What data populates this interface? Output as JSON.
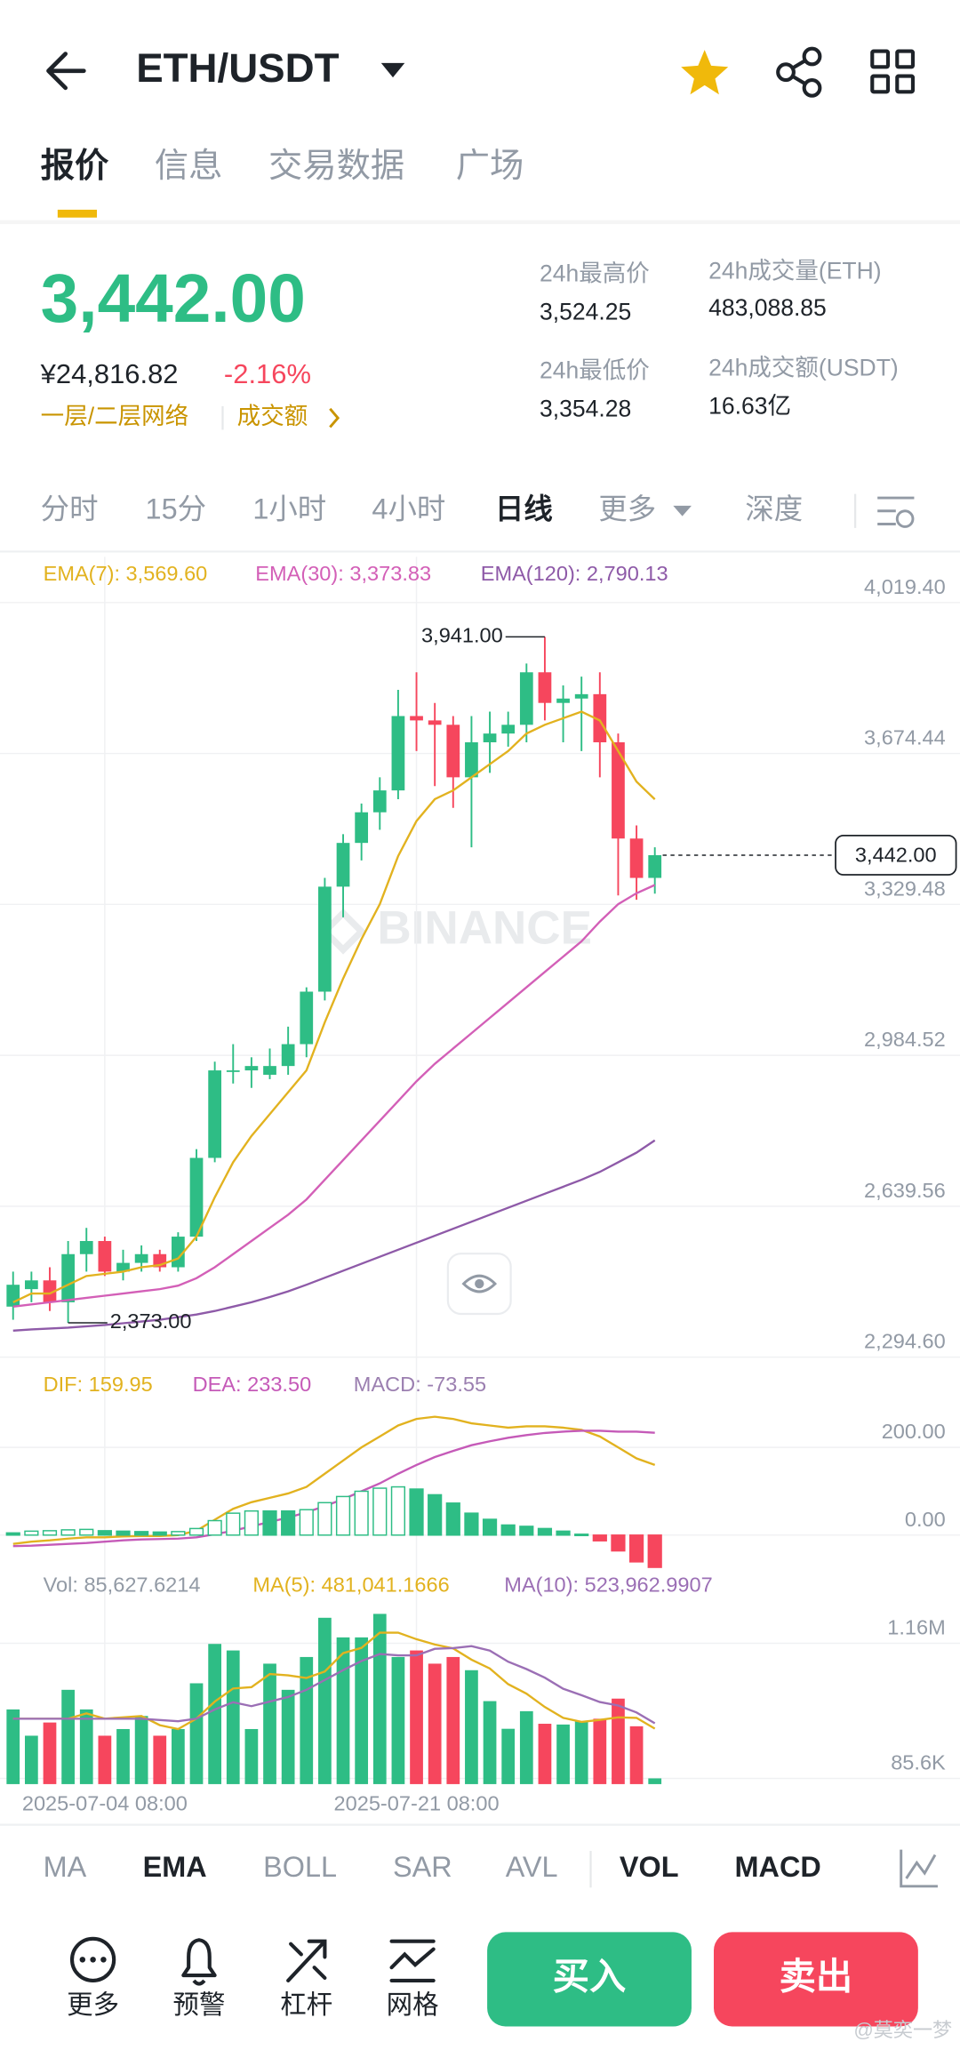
{
  "header": {
    "pair": "ETH/USDT"
  },
  "tabs": [
    "报价",
    "信息",
    "交易数据",
    "广场"
  ],
  "quote": {
    "last": "3,442.00",
    "cny": "¥24,816.82",
    "change": "-2.16%",
    "network": "一层/二层网络",
    "turnover_link": "成交额"
  },
  "stats": [
    {
      "label": "24h最高价",
      "value": "3,524.25"
    },
    {
      "label": "24h成交量(ETH)",
      "value": "483,088.85"
    },
    {
      "label": "24h最低价",
      "value": "3,354.28"
    },
    {
      "label": "24h成交额(USDT)",
      "value": "16.63亿"
    }
  ],
  "intervals": [
    "分时",
    "15分",
    "1小时",
    "4小时",
    "日线",
    "更多",
    "深度"
  ],
  "watermark": "BINANCE",
  "indicators": [
    "MA",
    "EMA",
    "BOLL",
    "SAR",
    "AVL",
    "VOL",
    "MACD"
  ],
  "actions": [
    "更多",
    "预警",
    "杠杆",
    "网格"
  ],
  "buy": "买入",
  "sell": "卖出",
  "credit": "@莫奕一梦",
  "chart_data": [
    {
      "type": "candlestick",
      "up_color": "#2ebd85",
      "down_color": "#f6465d",
      "open": [
        2410,
        2450,
        2470,
        2420,
        2530,
        2560,
        2490,
        2510,
        2530,
        2500,
        2570,
        2750,
        2950,
        2950,
        2940,
        2960,
        3010,
        3130,
        3370,
        3470,
        3540,
        3590,
        3760,
        3750,
        3740,
        3620,
        3700,
        3720,
        3740,
        3860,
        3790,
        3800,
        3810,
        3700,
        3480,
        3390
      ],
      "high": [
        2490,
        2490,
        2500,
        2560,
        2590,
        2570,
        2540,
        2550,
        2540,
        2580,
        2770,
        2970,
        3010,
        2980,
        3000,
        3050,
        3140,
        3390,
        3490,
        3560,
        3620,
        3820,
        3860,
        3790,
        3760,
        3760,
        3770,
        3770,
        3880,
        3941,
        3830,
        3850,
        3860,
        3720,
        3510,
        3460
      ],
      "low": [
        2380,
        2420,
        2400,
        2373,
        2490,
        2480,
        2470,
        2490,
        2490,
        2490,
        2560,
        2740,
        2920,
        2910,
        2930,
        2940,
        2980,
        3110,
        3300,
        3430,
        3500,
        3570,
        3680,
        3600,
        3550,
        3460,
        3630,
        3690,
        3700,
        3750,
        3700,
        3680,
        3620,
        3350,
        3340,
        3354
      ],
      "close": [
        2460,
        2470,
        2420,
        2530,
        2560,
        2490,
        2510,
        2530,
        2500,
        2570,
        2750,
        2950,
        2950,
        2960,
        2960,
        3010,
        3130,
        3370,
        3470,
        3540,
        3590,
        3760,
        3750,
        3740,
        3620,
        3700,
        3720,
        3740,
        3860,
        3790,
        3800,
        3810,
        3700,
        3480,
        3390,
        3442
      ],
      "series": [
        {
          "name": "EMA(7): 3,569.60",
          "color": "#e2b21f",
          "values": [
            2420,
            2440,
            2440,
            2460,
            2480,
            2485,
            2490,
            2500,
            2505,
            2520,
            2570,
            2660,
            2740,
            2800,
            2850,
            2900,
            2950,
            3060,
            3160,
            3250,
            3330,
            3440,
            3520,
            3570,
            3590,
            3620,
            3650,
            3680,
            3720,
            3740,
            3755,
            3770,
            3750,
            3680,
            3610,
            3569.6
          ]
        },
        {
          "name": "EMA(30): 3,373.83",
          "color": "#d35fb7",
          "values": [
            2410,
            2415,
            2420,
            2425,
            2430,
            2435,
            2440,
            2445,
            2450,
            2458,
            2475,
            2500,
            2530,
            2560,
            2590,
            2620,
            2655,
            2700,
            2745,
            2790,
            2835,
            2880,
            2925,
            2965,
            3000,
            3035,
            3070,
            3105,
            3140,
            3175,
            3210,
            3245,
            3290,
            3330,
            3355,
            3373.83
          ]
        },
        {
          "name": "EMA(120): 2,790.13",
          "color": "#8e5aa8",
          "values": [
            2355,
            2358,
            2360,
            2362,
            2365,
            2368,
            2372,
            2376,
            2380,
            2386,
            2392,
            2400,
            2410,
            2420,
            2432,
            2445,
            2460,
            2476,
            2492,
            2508,
            2524,
            2540,
            2556,
            2572,
            2588,
            2604,
            2620,
            2636,
            2652,
            2668,
            2684,
            2700,
            2718,
            2740,
            2762,
            2790.13
          ]
        }
      ],
      "ylim": [
        2294.6,
        4124
      ],
      "yticks": [
        {
          "value": 4019.4,
          "label": "4,019.40"
        },
        {
          "value": 3674.44,
          "label": "3,674.44"
        },
        {
          "value": 3329.48,
          "label": "3,329.48"
        },
        {
          "value": 2984.52,
          "label": "2,984.52"
        },
        {
          "value": 2639.56,
          "label": "2,639.56"
        },
        {
          "value": 2294.6,
          "label": "2,294.60"
        }
      ],
      "grid": true,
      "last_price": {
        "value": 3442,
        "label": "3,442.00"
      },
      "annotations": [
        {
          "value": 3941,
          "label": "3,941.00"
        },
        {
          "value": 2373,
          "label": "2,373.00"
        }
      ]
    },
    {
      "type": "macd",
      "up_color": "#2ebd85",
      "down_color": "#f6465d",
      "series": [
        {
          "name": "DIF: 159.95",
          "color": "#e2b21f",
          "values": [
            -20,
            -15,
            -12,
            -8,
            -5,
            -5,
            -3,
            -2,
            -2,
            0,
            10,
            35,
            60,
            75,
            85,
            95,
            110,
            140,
            170,
            200,
            225,
            250,
            265,
            270,
            265,
            255,
            250,
            245,
            248,
            248,
            245,
            240,
            225,
            200,
            175,
            159.95
          ]
        },
        {
          "name": "DEA: 233.50",
          "color": "#c55ab8",
          "values": [
            -25,
            -24,
            -22,
            -20,
            -18,
            -15,
            -12,
            -10,
            -9,
            -8,
            -5,
            2,
            10,
            20,
            30,
            40,
            52,
            66,
            82,
            100,
            118,
            140,
            160,
            178,
            192,
            205,
            214,
            222,
            228,
            233,
            236,
            238,
            238,
            236,
            236,
            233.5
          ]
        },
        {
          "name": "MACD: -73.55",
          "color": "#9b7fb0",
          "style": "bar",
          "values": [
            5,
            9,
            10,
            12,
            13,
            10,
            9,
            8,
            7,
            8,
            15,
            33,
            50,
            55,
            55,
            55,
            58,
            74,
            88,
            100,
            107,
            110,
            105,
            92,
            73,
            50,
            36,
            23,
            20,
            15,
            9,
            2,
            -13,
            -36,
            -61,
            -73.55
          ]
        }
      ],
      "ylim": [
        -78,
        394
      ],
      "yticks": [
        {
          "value": 200,
          "label": "200.00"
        },
        {
          "value": 0,
          "label": "0.00"
        }
      ],
      "grid": true
    },
    {
      "type": "bar",
      "categories": [
        null,
        null,
        null,
        null,
        null,
        "2025-07-04 08:00",
        null,
        null,
        null,
        null,
        null,
        null,
        null,
        null,
        null,
        null,
        null,
        null,
        null,
        null,
        null,
        null,
        "2025-07-21 08:00",
        null,
        null,
        null,
        null,
        null,
        null,
        null,
        null,
        null,
        null,
        null,
        null,
        null
      ],
      "series": [
        {
          "name": "Vol: 85,627.6214",
          "style": "bar",
          "values": [
            634000,
            425000,
            530000,
            790000,
            634000,
            425000,
            478000,
            582000,
            425000,
            478000,
            842000,
            1155000,
            1103000,
            478000,
            998000,
            790000,
            1051000,
            1363000,
            1207000,
            1207000,
            1394000,
            1051000,
            1103000,
            998000,
            1051000,
            946000,
            700000,
            480000,
            620000,
            520000,
            514000,
            540000,
            560000,
            720000,
            500000,
            85627.6214
          ]
        },
        {
          "name": "MA(5): 481,041.1666",
          "color": "#e2b21f",
          "values": [
            560000,
            560000,
            560000,
            560000,
            602600,
            560800,
            571400,
            581800,
            508800,
            477600,
            561000,
            696400,
            800600,
            811200,
            915200,
            904800,
            884000,
            936000,
            1081800,
            1123600,
            1244400,
            1244400,
            1192400,
            1150600,
            1119400,
            1029800,
            959600,
            835000,
            759400,
            653200,
            566800,
            534800,
            550800,
            570800,
            566800,
            481041.1666
          ]
        },
        {
          "name": "MA(10): 523,962.9907",
          "color": "#9b6fb5",
          "values": [
            560000,
            560000,
            560000,
            560000,
            560000,
            560000,
            560000,
            560000,
            550000,
            540100,
            560900,
            633900,
            691200,
            660000,
            696400,
            732900,
            790200,
            868300,
            946500,
            1019400,
            1074600,
            1064200,
            1064200,
            1116200,
            1121500,
            1137100,
            1102000,
            1013700,
            955000,
            886300,
            798300,
            747200,
            692900,
            665100,
            610000,
            523962.9907
          ]
        }
      ],
      "ylim": [
        40000,
        1436000
      ],
      "yticks": [
        {
          "value": 1160000,
          "label": "1.16M"
        },
        {
          "value": 85600,
          "label": "85.6K"
        }
      ],
      "grid": true
    }
  ]
}
